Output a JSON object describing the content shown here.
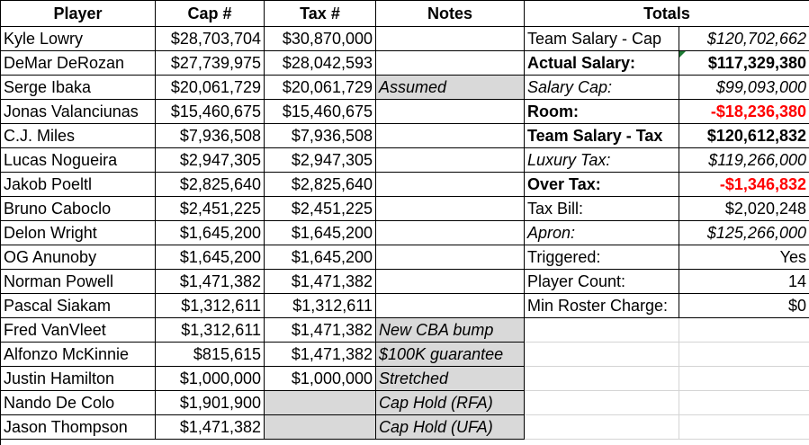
{
  "headers": {
    "player": "Player",
    "cap": "Cap #",
    "tax": "Tax #",
    "notes": "Notes",
    "totals": "Totals"
  },
  "players": [
    {
      "name": "Kyle Lowry",
      "cap": "$28,703,704",
      "tax": "$30,870,000",
      "note": ""
    },
    {
      "name": "DeMar DeRozan",
      "cap": "$27,739,975",
      "tax": "$28,042,593",
      "note": ""
    },
    {
      "name": "Serge Ibaka",
      "cap": "$20,061,729",
      "tax": "$20,061,729",
      "note": "Assumed"
    },
    {
      "name": "Jonas Valanciunas",
      "cap": "$15,460,675",
      "tax": "$15,460,675",
      "note": ""
    },
    {
      "name": "C.J. Miles",
      "cap": "$7,936,508",
      "tax": "$7,936,508",
      "note": ""
    },
    {
      "name": "Lucas Nogueira",
      "cap": "$2,947,305",
      "tax": "$2,947,305",
      "note": ""
    },
    {
      "name": "Jakob Poeltl",
      "cap": "$2,825,640",
      "tax": "$2,825,640",
      "note": ""
    },
    {
      "name": "Bruno Caboclo",
      "cap": "$2,451,225",
      "tax": "$2,451,225",
      "note": ""
    },
    {
      "name": "Delon Wright",
      "cap": "$1,645,200",
      "tax": "$1,645,200",
      "note": ""
    },
    {
      "name": "OG Anunoby",
      "cap": "$1,645,200",
      "tax": "$1,645,200",
      "note": ""
    },
    {
      "name": "Norman Powell",
      "cap": "$1,471,382",
      "tax": "$1,471,382",
      "note": ""
    },
    {
      "name": "Pascal Siakam",
      "cap": "$1,312,611",
      "tax": "$1,312,611",
      "note": ""
    },
    {
      "name": "Fred VanVleet",
      "cap": "$1,312,611",
      "tax": "$1,471,382",
      "note": "New CBA bump"
    },
    {
      "name": "Alfonzo McKinnie",
      "cap": "$815,615",
      "tax": "$1,471,382",
      "note": "$100K guarantee"
    },
    {
      "name": "Justin Hamilton",
      "cap": "$1,000,000",
      "tax": "$1,000,000",
      "note": "Stretched"
    },
    {
      "name": "Nando De Colo",
      "cap": "$1,901,900",
      "tax": "",
      "note": "Cap Hold (RFA)"
    },
    {
      "name": "Jason Thompson",
      "cap": "$1,471,382",
      "tax": "",
      "note": "Cap Hold (UFA)"
    }
  ],
  "totals": [
    {
      "label": "Team Salary - Cap",
      "value": "$120,702,662"
    },
    {
      "label": "Actual Salary:",
      "value": "$117,329,380"
    },
    {
      "label": "Salary Cap:",
      "value": "$99,093,000"
    },
    {
      "label": "Room:",
      "value": "-$18,236,380"
    },
    {
      "label": "Team Salary - Tax",
      "value": "$120,612,832"
    },
    {
      "label": "Luxury Tax:",
      "value": "$119,266,000"
    },
    {
      "label": "Over Tax:",
      "value": "-$1,346,832"
    },
    {
      "label": "Tax Bill:",
      "value": "$2,020,248"
    },
    {
      "label": "Apron:",
      "value": "$125,266,000"
    },
    {
      "label": "Triggered:",
      "value": "Yes"
    },
    {
      "label": "Player Count:",
      "value": "14"
    },
    {
      "label": "Min Roster Charge:",
      "value": "$0"
    }
  ],
  "colors": {
    "negative": "#ff0000",
    "shaded_cell": "#d9d9d9",
    "comment_marker": "#1e7b34"
  }
}
